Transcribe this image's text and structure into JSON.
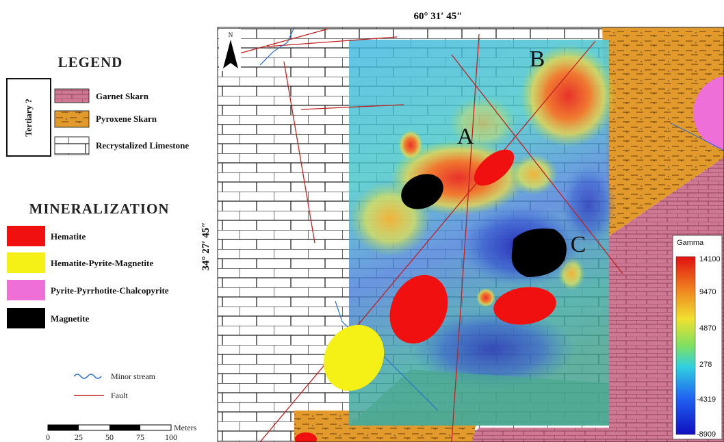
{
  "header": {
    "top_coordinate": "60° 31′ 45″",
    "left_coordinate": "34° 27′ 45″"
  },
  "legend": {
    "title": "LEGEND",
    "group": "Tertiary ?",
    "items": [
      {
        "label": "Garnet Skarn"
      },
      {
        "label": "Pyroxene Skarn"
      },
      {
        "label": "Recrystalized Limestone"
      }
    ]
  },
  "mineralization": {
    "title": "MINERALIZATION",
    "items": [
      {
        "label": "Hematite"
      },
      {
        "label": "Hematite-Pyrite-Magnetite"
      },
      {
        "label": "Pyrite-Pyrrhotite-Chalcopyrite"
      },
      {
        "label": "Magnetite"
      }
    ]
  },
  "lines": [
    {
      "label": "Minor stream"
    },
    {
      "label": "Fault"
    }
  ],
  "scale": {
    "unit": "Meters",
    "labels": [
      0,
      25,
      50,
      75,
      100
    ]
  },
  "map": {
    "north": "N",
    "zones": [
      "A",
      "B",
      "C"
    ]
  },
  "colorbar": {
    "title": "Gamma",
    "ticks": [
      14100,
      9470,
      4870,
      278,
      -4319,
      -8909
    ]
  }
}
